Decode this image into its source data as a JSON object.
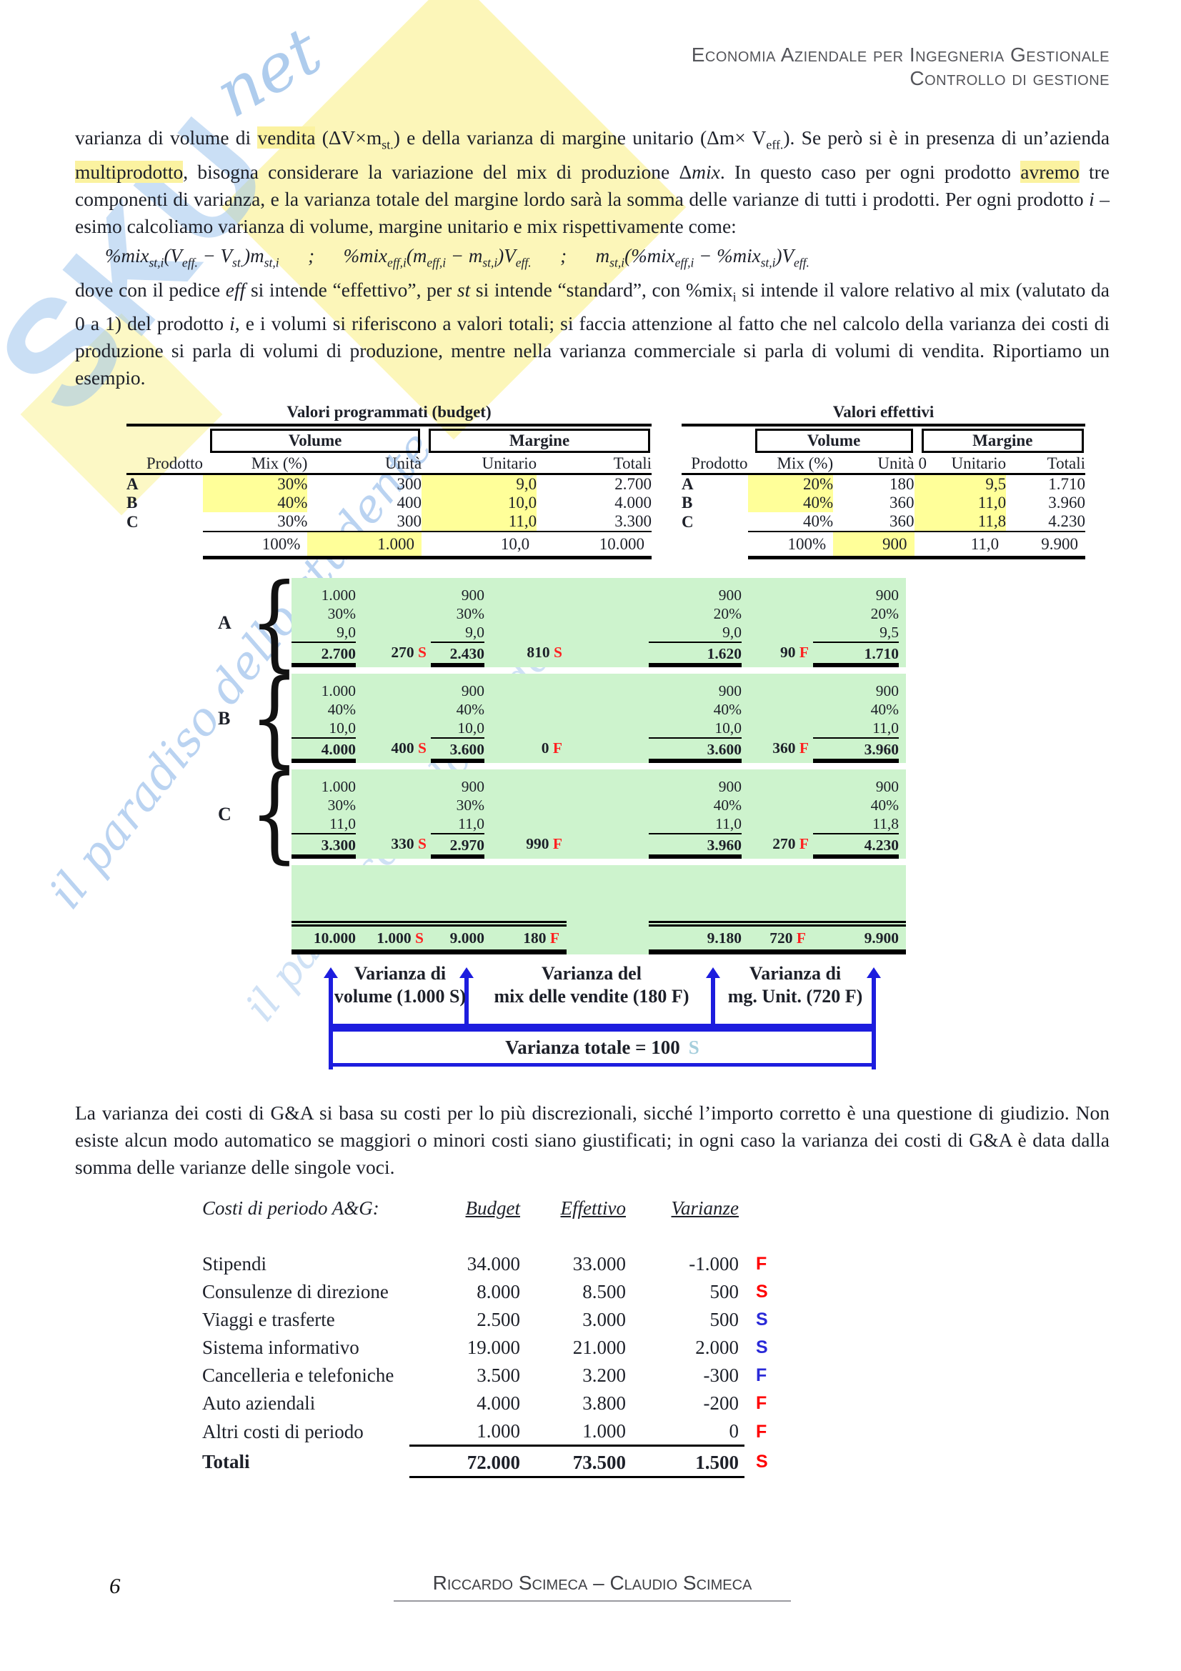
{
  "header": {
    "line1": "Economia Aziendale per Ingegneria Gestionale",
    "line2": "Controllo di gestione"
  },
  "watermark": {
    "logo_text": "SKU",
    "logo_script": "net",
    "tagline": "il paradiso dello studente"
  },
  "colors": {
    "variance_red": "#FF0000",
    "variance_blue": "#2A2AD8",
    "highlight_yellow": "#FFFF99",
    "calc_green": "#CDF3CD",
    "arrow_blue": "#1D1DDE",
    "light_blue_s": "#A5CEDC"
  },
  "paragraphs": {
    "p1": [
      [
        "",
        "varianza di volume di "
      ],
      [
        "hl",
        "vendita"
      ],
      [
        "",
        " (ΔV×m"
      ],
      [
        "sub",
        "st."
      ],
      [
        "",
        ") e della varianza di margine unitario (Δm× V"
      ],
      [
        "sub",
        "eff."
      ],
      [
        "",
        "). Se però si è in presenza di un’azienda "
      ],
      [
        "hl",
        "multiprodotto"
      ],
      [
        "",
        ", bisogna considerare la variazione del mix di produzione Δ"
      ],
      [
        "i",
        "mix"
      ],
      [
        "",
        ". In questo caso per ogni prodotto "
      ],
      [
        "hl",
        "avremo"
      ],
      [
        "",
        " tre componenti di varianza, e la varianza totale del margine lordo sarà la somma delle varianze di tutti i prodotti. Per ogni prodotto "
      ],
      [
        "i",
        "i"
      ],
      [
        "",
        " – esimo calcoliamo varianza di volume, margine unitario e mix rispettivamente come:"
      ]
    ],
    "formula": [
      [
        "",
        "%mix"
      ],
      [
        "sub",
        "st,i"
      ],
      [
        "",
        "(V"
      ],
      [
        "sub",
        "eff."
      ],
      [
        "",
        " − V"
      ],
      [
        "sub",
        "st."
      ],
      [
        "",
        ")m"
      ],
      [
        "sub",
        "st,i"
      ],
      [
        "",
        "  ;  %mix"
      ],
      [
        "sub",
        "eff,i"
      ],
      [
        "",
        "(m"
      ],
      [
        "sub",
        "eff,i"
      ],
      [
        "",
        " − m"
      ],
      [
        "sub",
        "st,i"
      ],
      [
        "",
        ")V"
      ],
      [
        "sub",
        "eff."
      ],
      [
        "",
        "  ;  m"
      ],
      [
        "sub",
        "st,i"
      ],
      [
        "",
        "(%mix"
      ],
      [
        "sub",
        "eff,i"
      ],
      [
        "",
        " − %mix"
      ],
      [
        "sub",
        "st,i"
      ],
      [
        "",
        ")V"
      ],
      [
        "sub",
        "eff."
      ]
    ],
    "p2": [
      [
        "",
        "dove con il pedice "
      ],
      [
        "i",
        "eff"
      ],
      [
        "",
        " si intende “effettivo”, per "
      ],
      [
        "i",
        "st"
      ],
      [
        "",
        " si intende “standard”, con %mix"
      ],
      [
        "sub",
        "i"
      ],
      [
        "",
        " si intende il valore relativo al mix (valutato da 0 a 1) del prodotto "
      ],
      [
        "i",
        "i"
      ],
      [
        "",
        ", e i volumi si riferiscono a valori totali; si faccia attenzione al fatto che nel calcolo della varianza dei costi di produzione si parla di volumi di produzione, mentre nella varianza commerciale si parla di volumi di vendita. Riportiamo un esempio."
      ]
    ],
    "p3": [
      [
        "",
        "La varianza dei costi di G&A si basa su costi per lo più discrezionali, sicché l’importo corretto è una questione di giudizio. Non esiste alcun modo automatico se maggiori o minori costi siano giustificati; in ogni caso la varianza dei costi di G&A è data dalla somma delle varianze delle singole voci."
      ]
    ]
  },
  "tables": {
    "budget": {
      "title": "Valori programmati (budget)",
      "group_volume": "Volume",
      "group_margine": "Margine",
      "headers": [
        "Prodotto",
        "Mix (%)",
        "Unità",
        "Unitario",
        "Totali"
      ],
      "rows": [
        {
          "label": "A",
          "cells": [
            {
              "v": "30%",
              "hl": true
            },
            {
              "v": "300"
            },
            {
              "v": "9,0",
              "hl": true
            },
            {
              "v": "2.700"
            }
          ]
        },
        {
          "label": "B",
          "cells": [
            {
              "v": "40%",
              "hl": true
            },
            {
              "v": "400"
            },
            {
              "v": "10,0",
              "hl": true
            },
            {
              "v": "4.000"
            }
          ]
        },
        {
          "label": "C",
          "cells": [
            {
              "v": "30%"
            },
            {
              "v": "300"
            },
            {
              "v": "11,0",
              "hl": true
            },
            {
              "v": "3.300"
            }
          ]
        }
      ],
      "total": {
        "cells": [
          {
            "v": "100%"
          },
          {
            "v": "1.000",
            "hl": true
          },
          {
            "v": "10,0"
          },
          {
            "v": "10.000"
          }
        ]
      }
    },
    "effettivi": {
      "title": "Valori effettivi",
      "group_volume": "Volume",
      "group_margine": "Margine",
      "extra_zero": "0",
      "headers": [
        "Prodotto",
        "Mix (%)",
        "Unità",
        "Unitario",
        "Totali"
      ],
      "rows": [
        {
          "label": "A",
          "cells": [
            {
              "v": "20%",
              "hl": true
            },
            {
              "v": "180"
            },
            {
              "v": "9,5",
              "hl": true
            },
            {
              "v": "1.710"
            }
          ]
        },
        {
          "label": "B",
          "cells": [
            {
              "v": "40%",
              "hl": true
            },
            {
              "v": "360"
            },
            {
              "v": "11,0",
              "hl": true
            },
            {
              "v": "3.960"
            }
          ]
        },
        {
          "label": "C",
          "cells": [
            {
              "v": "40%"
            },
            {
              "v": "360"
            },
            {
              "v": "11,8",
              "hl": true
            },
            {
              "v": "4.230"
            }
          ]
        }
      ],
      "total": {
        "cells": [
          {
            "v": "100%"
          },
          {
            "v": "900",
            "hl": true
          },
          {
            "v": "11,0"
          },
          {
            "v": "9.900"
          }
        ]
      }
    }
  },
  "calc": {
    "products": [
      {
        "label": "A",
        "stacks": [
          [
            "1.000",
            "30%",
            "9,0",
            "2.700"
          ],
          [
            "900",
            "30%",
            "9,0",
            "2.430"
          ],
          [
            "900",
            "20%",
            "9,0",
            "1.620"
          ],
          [
            "900",
            "20%",
            "9,5",
            "1.710"
          ]
        ],
        "variances": [
          [
            "270",
            "S"
          ],
          [
            "810",
            "S"
          ],
          [
            "90",
            "F"
          ]
        ]
      },
      {
        "label": "B",
        "stacks": [
          [
            "1.000",
            "40%",
            "10,0",
            "4.000"
          ],
          [
            "900",
            "40%",
            "10,0",
            "3.600"
          ],
          [
            "900",
            "40%",
            "10,0",
            "3.600"
          ],
          [
            "900",
            "40%",
            "11,0",
            "3.960"
          ]
        ],
        "variances": [
          [
            "400",
            "S"
          ],
          [
            "0",
            "F"
          ],
          [
            "360",
            "F"
          ]
        ]
      },
      {
        "label": "C",
        "stacks": [
          [
            "1.000",
            "30%",
            "11,0",
            "3.300"
          ],
          [
            "900",
            "30%",
            "11,0",
            "2.970"
          ],
          [
            "900",
            "40%",
            "11,0",
            "3.960"
          ],
          [
            "900",
            "40%",
            "11,8",
            "4.230"
          ]
        ],
        "variances": [
          [
            "330",
            "S"
          ],
          [
            "990",
            "F"
          ],
          [
            "270",
            "F"
          ]
        ]
      }
    ],
    "totals": [
      [
        "10.000",
        ""
      ],
      [
        "1.000",
        "S"
      ],
      [
        "9.000",
        ""
      ],
      [
        "180",
        "F"
      ],
      [
        "9.180",
        ""
      ],
      [
        "720",
        "F"
      ],
      [
        "9.900",
        ""
      ]
    ]
  },
  "diagram": {
    "labels": [
      [
        "Varianza di",
        "volume (1.000 S)"
      ],
      [
        "Varianza del",
        "mix delle vendite (180 F)"
      ],
      [
        "Varianza di",
        "mg. Unit. (720 F)"
      ]
    ],
    "total_text": "Varianza totale = 100",
    "total_letter": "S"
  },
  "costs": {
    "heading": "Costi di periodo A&G:",
    "headers": [
      "Budget",
      "Effettivo",
      "Varianze"
    ],
    "rows": [
      [
        "Stipendi",
        "34.000",
        "33.000",
        "-1.000",
        "F",
        "red"
      ],
      [
        "Consulenze di direzione",
        "8.000",
        "8.500",
        "500",
        "S",
        "red"
      ],
      [
        "Viaggi e trasferte",
        "2.500",
        "3.000",
        "500",
        "S",
        "blue"
      ],
      [
        "Sistema informativo",
        "19.000",
        "21.000",
        "2.000",
        "S",
        "blue"
      ],
      [
        "Cancelleria e telefoniche",
        "3.500",
        "3.200",
        "-300",
        "F",
        "blue"
      ],
      [
        "Auto aziendali",
        "4.000",
        "3.800",
        "-200",
        "F",
        "red"
      ],
      [
        "Altri costi di periodo",
        "1.000",
        "1.000",
        "0",
        "F",
        "red"
      ]
    ],
    "total": [
      "Totali",
      "72.000",
      "73.500",
      "1.500",
      "S",
      "red"
    ]
  },
  "footer": {
    "page": "6",
    "authors": "Riccardo Scimeca – Claudio Scimeca"
  }
}
